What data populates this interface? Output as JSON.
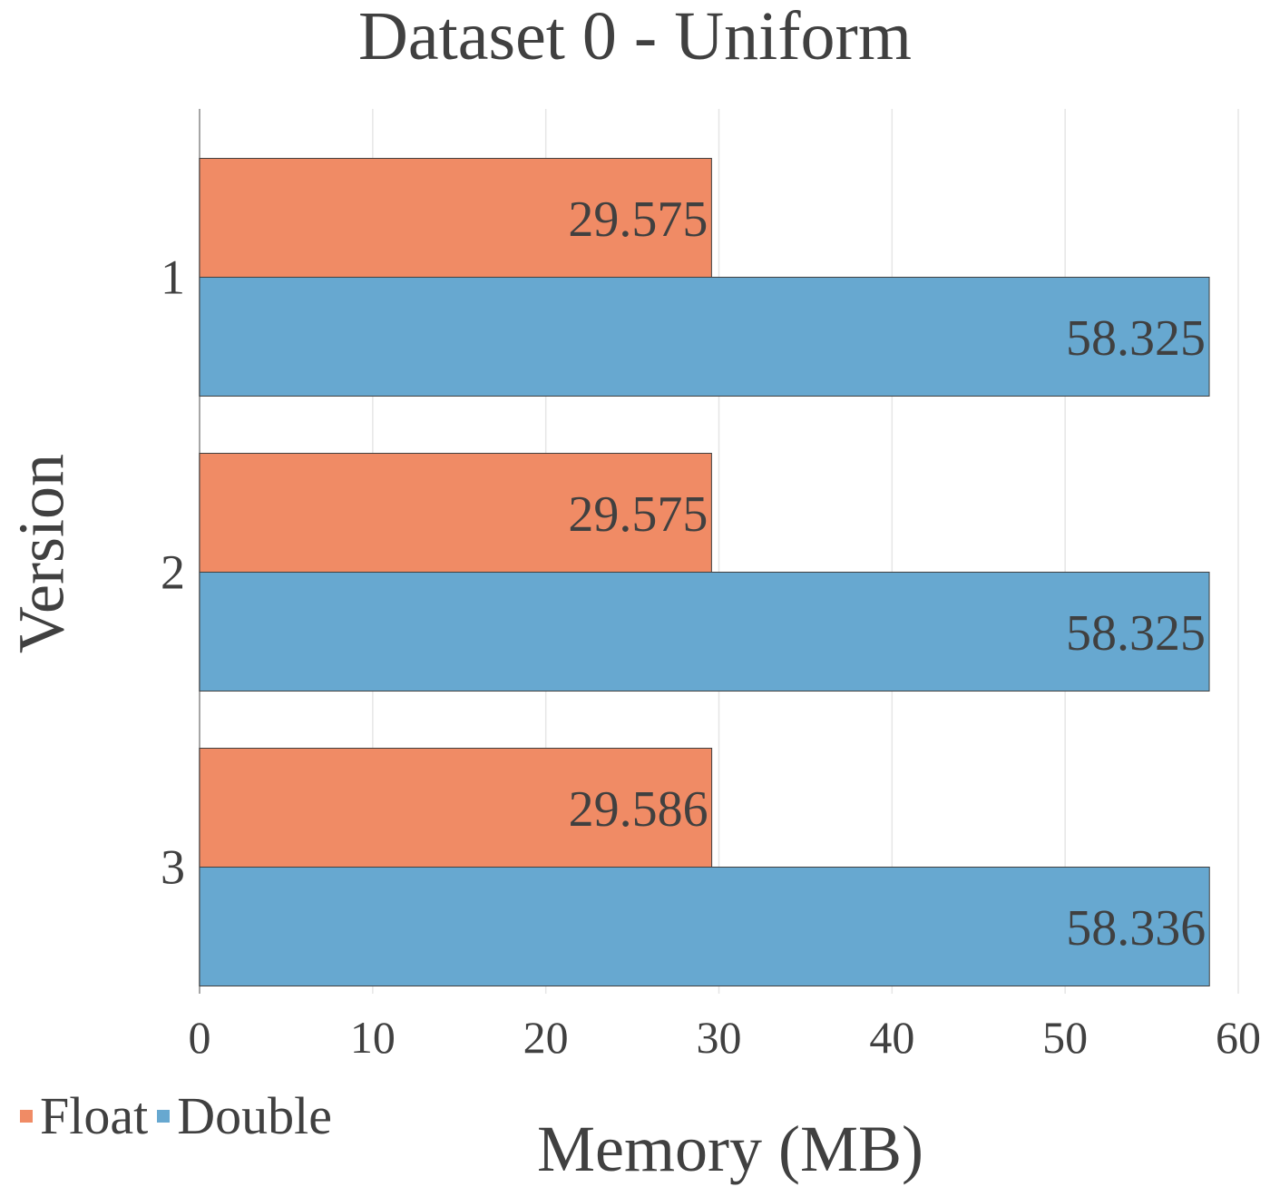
{
  "chart_data": {
    "type": "bar",
    "orientation": "horizontal",
    "title": "Dataset 0 - Uniform",
    "xlabel": "Memory (MB)",
    "ylabel": "Version",
    "categories": [
      "1",
      "2",
      "3"
    ],
    "series": [
      {
        "name": "Float",
        "color": "#f08b65",
        "values": [
          29.575,
          29.575,
          29.586
        ]
      },
      {
        "name": "Double",
        "color": "#67a8d0",
        "values": [
          58.325,
          58.325,
          58.336
        ]
      }
    ],
    "xlim": [
      0,
      60
    ],
    "xticks": [
      "0",
      "10",
      "20",
      "30",
      "40",
      "50",
      "60"
    ],
    "grid": true,
    "legend_position": "bottom-left"
  }
}
